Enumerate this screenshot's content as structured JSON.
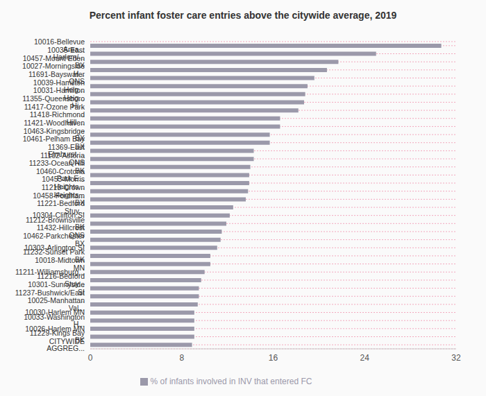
{
  "chart_data": {
    "type": "bar",
    "title": "Percent infant foster care entries above the citywide average, 2019",
    "orientation": "horizontal",
    "categories": [
      "10016-Bellevue Area...",
      "10035-East Harlem/...",
      "10457-Mount Eden BX",
      "10027-Morningside H...",
      "11691-Bayswater QNS",
      "10039-Hamilton Heig...",
      "10031-Hamilton Heig...",
      "11355-Queensboro Hi...",
      "11417-Ozone Park ...",
      "11418-Richmond Hill ...",
      "11421-Woodhaven ...",
      "10463-Kingsbridge BX",
      "10461-Pelham Bay BX",
      "11369-East Elmhurst ...",
      "11102-Astoria QNS",
      "11233-Ocean Hill BK",
      "10460-Crotona Park E...",
      "10453-Morris Heights...",
      "11213-Crown Heights...",
      "10458-Fordham BX",
      "11221-Bedford Stuy...",
      "10304-Clifton SI",
      "11212-Brownsville BK",
      "11432-Hillcrest QNS",
      "10462-Parkchester BX",
      "10303-Arlington SI",
      "11232-Sunset Park BK",
      "10018-Midtown MN",
      "11211-Williamsburg...",
      "11216-Bedford Stuy...",
      "10301-Sunnyside SI",
      "11237-Bushwick/East ...",
      "10025-Manhattan Val...",
      "10030-Harlem MN",
      "10033-Washington H...",
      "10026-Harlem MN",
      "11229-Kings Bay BK",
      "CITYWIDE AGGREG..."
    ],
    "series": [
      {
        "name": "% of infants involved in INV that entered FC",
        "color": "#9b99aa",
        "values": [
          30.7,
          25.0,
          21.7,
          20.7,
          19.6,
          19.0,
          18.8,
          18.7,
          18.2,
          16.6,
          16.6,
          15.7,
          15.7,
          14.3,
          14.3,
          14.0,
          13.9,
          13.9,
          13.8,
          13.6,
          12.5,
          12.2,
          11.9,
          11.5,
          11.4,
          11.1,
          10.5,
          10.5,
          10.0,
          9.7,
          9.5,
          9.5,
          9.4,
          9.1,
          9.1,
          9.1,
          9.1,
          8.9
        ]
      }
    ],
    "xlim": [
      0,
      32
    ],
    "xticks": [
      0,
      8,
      16,
      24,
      32
    ],
    "grid": true,
    "legend": "bottom"
  }
}
